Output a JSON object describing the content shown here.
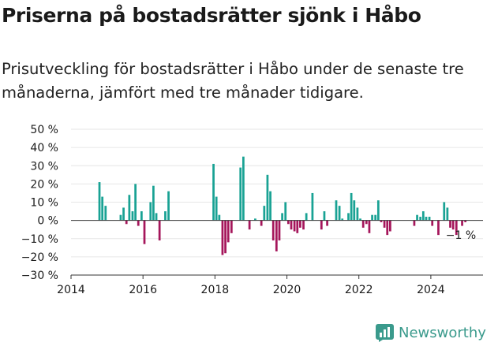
{
  "title": "Priserna på bostadsrätter sjönk i Håbo",
  "subtitle": "Prisutveckling för bostadsrätter i Håbo under de senaste tre månaderna, jämfört med tre månader tidigare.",
  "brand": "Newsworthy",
  "colors": {
    "positive": "#19a294",
    "negative": "#a5165b",
    "brand": "#3a9a8c"
  },
  "chart_data": {
    "type": "bar",
    "title": "",
    "xlabel": "",
    "ylabel": "",
    "x_ticks": [
      "2014",
      "2016",
      "2018",
      "2020",
      "2022",
      "2024"
    ],
    "y_ticks": [
      "50 %",
      "40 %",
      "30 %",
      "20 %",
      "10 %",
      "0 %",
      "−10 %",
      "−20 %",
      "−30 %"
    ],
    "ylim": [
      -30,
      50
    ],
    "xlim": [
      2014.0,
      2025.45
    ],
    "grid": true,
    "annotation": "−1 %",
    "x": [
      2014.79,
      2014.87,
      2014.96,
      2015.38,
      2015.46,
      2015.54,
      2015.62,
      2015.71,
      2015.79,
      2015.87,
      2015.96,
      2016.04,
      2016.12,
      2016.21,
      2016.29,
      2016.37,
      2016.46,
      2016.54,
      2016.62,
      2016.71,
      2016.79,
      2017.96,
      2018.04,
      2018.12,
      2018.21,
      2018.29,
      2018.37,
      2018.46,
      2018.54,
      2018.71,
      2018.79,
      2018.87,
      2018.96,
      2019.04,
      2019.12,
      2019.21,
      2019.29,
      2019.37,
      2019.46,
      2019.54,
      2019.62,
      2019.71,
      2019.79,
      2019.87,
      2019.96,
      2020.04,
      2020.12,
      2020.21,
      2020.29,
      2020.37,
      2020.46,
      2020.54,
      2020.62,
      2020.71,
      2020.79,
      2020.87,
      2020.96,
      2021.04,
      2021.12,
      2021.21,
      2021.29,
      2021.37,
      2021.46,
      2021.54,
      2021.62,
      2021.71,
      2021.79,
      2021.87,
      2021.96,
      2022.04,
      2022.12,
      2022.21,
      2022.29,
      2022.37,
      2022.46,
      2022.54,
      2022.62,
      2022.71,
      2022.79,
      2022.87,
      2023.54,
      2023.62,
      2023.71,
      2023.79,
      2023.87,
      2023.96,
      2024.04,
      2024.12,
      2024.21,
      2024.29,
      2024.37,
      2024.46,
      2024.54,
      2024.62,
      2024.71,
      2024.79,
      2024.87,
      2024.96
    ],
    "values": [
      21,
      13,
      8,
      3,
      7,
      -2,
      14,
      5,
      20,
      -3,
      5,
      -13,
      0,
      10,
      19,
      4,
      -11,
      0,
      5,
      16,
      0,
      31,
      13,
      3,
      -19,
      -18,
      -12,
      -7,
      0,
      29,
      35,
      0,
      -5,
      0,
      1,
      0,
      -3,
      8,
      25,
      16,
      -11,
      -17,
      -11,
      4,
      10,
      -2,
      -5,
      -6,
      -7,
      -4,
      -5,
      4,
      0,
      15,
      0,
      0,
      -5,
      5,
      -3,
      0,
      0,
      11,
      8,
      1,
      0,
      4,
      15,
      11,
      7,
      1,
      -4,
      -2,
      -7,
      3,
      3,
      11,
      -1,
      -4,
      -8,
      -6,
      -3,
      3,
      2,
      5,
      2,
      2,
      -3,
      0,
      -8,
      0,
      10,
      7,
      -4,
      -5,
      -8,
      0,
      -3,
      -1
    ]
  }
}
